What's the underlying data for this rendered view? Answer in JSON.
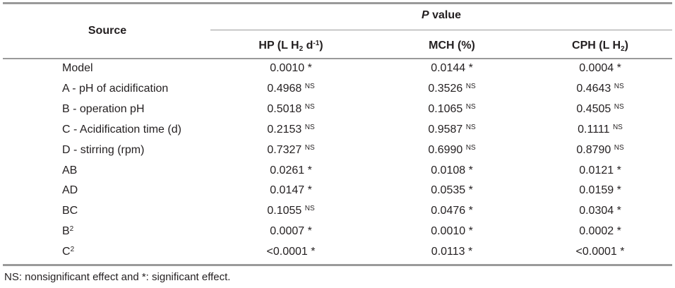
{
  "header": {
    "group": [
      {
        "i": "P"
      },
      {
        "t": " value"
      }
    ],
    "source": [
      {
        "t": "Source"
      }
    ],
    "columns": [
      [
        {
          "t": "HP (L H"
        },
        {
          "sub": "2"
        },
        {
          "t": " d"
        },
        {
          "sup": "-1"
        },
        {
          "t": ")"
        }
      ],
      [
        {
          "t": "MCH (%)"
        }
      ],
      [
        {
          "t": "CPH (L H"
        },
        {
          "sub": "2"
        },
        {
          "t": ")"
        }
      ]
    ]
  },
  "table": {
    "rows": [
      {
        "label": [
          {
            "t": "Model"
          }
        ],
        "cells": [
          [
            {
              "t": "0.0010 *"
            }
          ],
          [
            {
              "t": "0.0144 *"
            }
          ],
          [
            {
              "t": "0.0004 *"
            }
          ]
        ]
      },
      {
        "label": [
          {
            "t": "A - pH of acidification"
          }
        ],
        "cells": [
          [
            {
              "t": "0.4968 "
            },
            {
              "sup": "NS"
            }
          ],
          [
            {
              "t": "0.3526 "
            },
            {
              "sup": "NS"
            }
          ],
          [
            {
              "t": "0.4643 "
            },
            {
              "sup": "NS"
            }
          ]
        ]
      },
      {
        "label": [
          {
            "t": "B - operation pH"
          }
        ],
        "cells": [
          [
            {
              "t": "0.5018 "
            },
            {
              "sup": "NS"
            }
          ],
          [
            {
              "t": "0.1065 "
            },
            {
              "sup": "NS"
            }
          ],
          [
            {
              "t": "0.4505 "
            },
            {
              "sup": "NS"
            }
          ]
        ]
      },
      {
        "label": [
          {
            "t": "C - Acidification time (d)"
          }
        ],
        "cells": [
          [
            {
              "t": "0.2153 "
            },
            {
              "sup": "NS"
            }
          ],
          [
            {
              "t": "0.9587 "
            },
            {
              "sup": "NS"
            }
          ],
          [
            {
              "t": "0.1111 "
            },
            {
              "sup": "NS"
            }
          ]
        ]
      },
      {
        "label": [
          {
            "t": "D - stirring (rpm)"
          }
        ],
        "cells": [
          [
            {
              "t": "0.7327 "
            },
            {
              "sup": "NS"
            }
          ],
          [
            {
              "t": "0.6990 "
            },
            {
              "sup": "NS"
            }
          ],
          [
            {
              "t": "0.8790 "
            },
            {
              "sup": "NS"
            }
          ]
        ]
      },
      {
        "label": [
          {
            "t": "AB"
          }
        ],
        "cells": [
          [
            {
              "t": "0.0261 *"
            }
          ],
          [
            {
              "t": "0.0108 *"
            }
          ],
          [
            {
              "t": "0.0121 *"
            }
          ]
        ]
      },
      {
        "label": [
          {
            "t": "AD"
          }
        ],
        "cells": [
          [
            {
              "t": "0.0147 *"
            }
          ],
          [
            {
              "t": "0.0535 *"
            }
          ],
          [
            {
              "t": "0.0159 *"
            }
          ]
        ]
      },
      {
        "label": [
          {
            "t": "BC"
          }
        ],
        "cells": [
          [
            {
              "t": "0.1055 "
            },
            {
              "sup": "NS"
            }
          ],
          [
            {
              "t": "0.0476 *"
            }
          ],
          [
            {
              "t": "0.0304 *"
            }
          ]
        ]
      },
      {
        "label": [
          {
            "t": "B"
          },
          {
            "sup": "2"
          }
        ],
        "cells": [
          [
            {
              "t": "0.0007 *"
            }
          ],
          [
            {
              "t": "0.0010 *"
            }
          ],
          [
            {
              "t": "0.0002 *"
            }
          ]
        ]
      },
      {
        "label": [
          {
            "t": "C"
          },
          {
            "sup": "2"
          }
        ],
        "cells": [
          [
            {
              "t": "<0.0001 *"
            }
          ],
          [
            {
              "t": "0.0113 *"
            }
          ],
          [
            {
              "t": "<0.0001 *"
            }
          ]
        ]
      }
    ]
  },
  "footnote": [
    {
      "t": "NS: nonsignificant effect and *: significant effect."
    }
  ]
}
